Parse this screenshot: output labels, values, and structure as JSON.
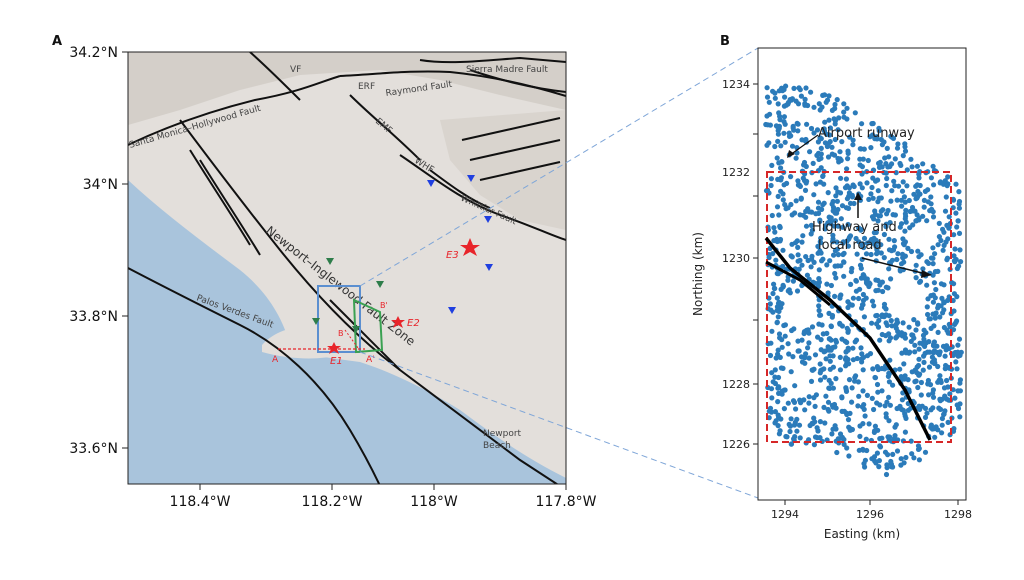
{
  "panel_a": {
    "letter": "A",
    "lat_ticks": [
      "34.2°N",
      "34°N",
      "33.8°N",
      "33.6°N"
    ],
    "lon_ticks": [
      "118.4°W",
      "118.2°W",
      "118°W",
      "117.8°W"
    ],
    "fault_labels": {
      "santa_monica": "Santa Monica–Hollywood Fault",
      "raymond": "Raymond Fault",
      "sierra_madre": "Sierra Madre Fault",
      "erf": "ERF",
      "vf": "VF",
      "emf": "EMF",
      "whf": "WHF",
      "whittier": "Whittier Fault",
      "newport_inglewood": "Newport–Inglewood Fault Zone",
      "palos_verdes": "Palos Verdes Fault"
    },
    "place_labels": {
      "newport_beach": "Newport\nBeach",
      "newport": "Newport",
      "beach": "Beach"
    },
    "events": {
      "e1": "E1",
      "e2": "E2",
      "e3": "E3"
    },
    "profile_labels": {
      "a_start": "A",
      "a_end": "A'",
      "b_start": "B",
      "b_end": "B'"
    },
    "colors": {
      "land": "#e3dfdb",
      "water": "#a9c4dc",
      "fault": "#111111",
      "event": "#e8242a",
      "station_blue": "#1f3fe0",
      "station_green": "#2e7d4a",
      "box_blue": "#5b8fd0",
      "box_green": "#3aa152"
    }
  },
  "panel_b": {
    "letter": "B",
    "xlabel": "Easting (km)",
    "ylabel": "Northing (km)",
    "x_ticks": [
      "1294",
      "1296",
      "1298"
    ],
    "y_ticks": [
      "1226",
      "1228",
      "1230",
      "1232",
      "1234"
    ],
    "annotations": {
      "runway": "Airport runway",
      "highway1": "Highway and",
      "highway2": "local road"
    },
    "colors": {
      "points": "#2b7bba",
      "box": "#d62728",
      "fault": "#000000"
    }
  }
}
